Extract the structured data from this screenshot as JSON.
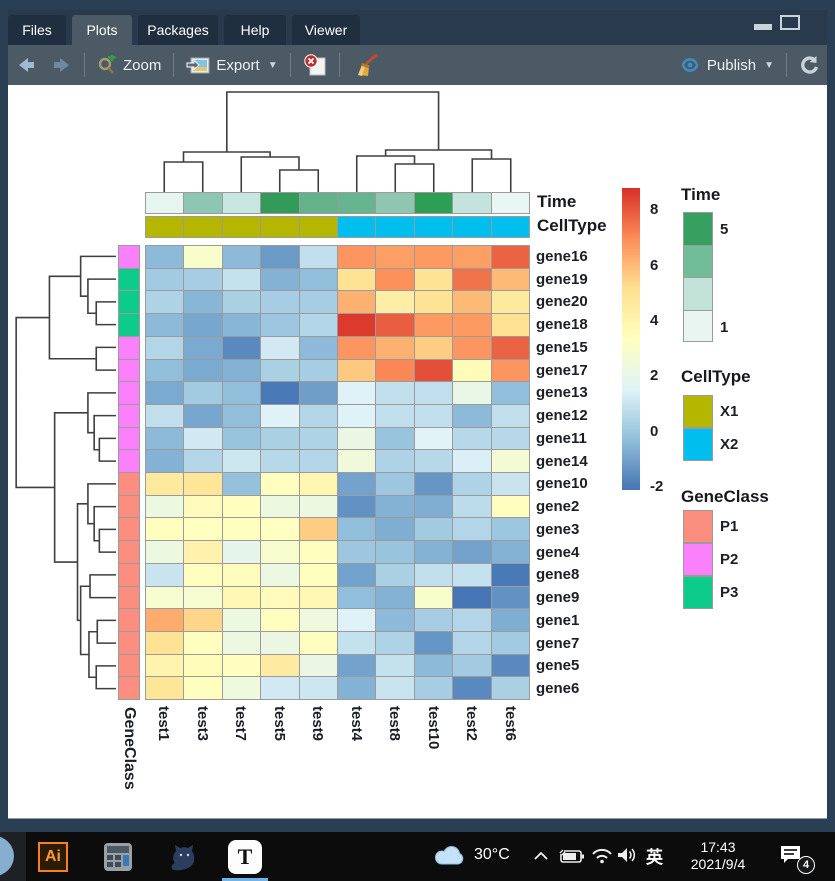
{
  "window": {
    "tabs": {
      "items": [
        "Files",
        "Plots",
        "Packages",
        "Help",
        "Viewer"
      ],
      "active": "Plots"
    },
    "toolbar": {
      "zoom_label": "Zoom",
      "export_label": "Export",
      "publish_label": "Publish"
    }
  },
  "chart_data": {
    "type": "heatmap",
    "columns": [
      "test1",
      "test3",
      "test7",
      "test5",
      "test9",
      "test4",
      "test8",
      "test10",
      "test2",
      "test6"
    ],
    "rows": [
      "gene16",
      "gene19",
      "gene20",
      "gene18",
      "gene15",
      "gene17",
      "gene13",
      "gene12",
      "gene11",
      "gene14",
      "gene10",
      "gene2",
      "gene3",
      "gene4",
      "gene8",
      "gene9",
      "gene1",
      "gene7",
      "gene5",
      "gene6"
    ],
    "values": [
      [
        -0.4,
        3.0,
        -0.4,
        -1.2,
        0.8,
        6.8,
        6.6,
        6.7,
        6.6,
        7.8
      ],
      [
        0.1,
        0.2,
        0.9,
        -0.6,
        -0.3,
        5.0,
        6.9,
        5.0,
        7.5,
        6.0
      ],
      [
        0.4,
        -0.5,
        0.3,
        0.2,
        0.2,
        6.2,
        4.4,
        5.0,
        6.0,
        4.6
      ],
      [
        -0.4,
        -0.9,
        -0.5,
        0.0,
        0.5,
        8.6,
        7.9,
        6.7,
        6.7,
        5.1
      ],
      [
        0.5,
        -0.8,
        -1.6,
        1.2,
        -0.4,
        6.8,
        6.2,
        5.6,
        6.8,
        7.8
      ],
      [
        -0.3,
        -0.8,
        -0.6,
        0.3,
        0.2,
        5.7,
        7.1,
        8.2,
        3.6,
        6.8
      ],
      [
        -0.8,
        0.1,
        -0.3,
        -2.0,
        -1.1,
        1.5,
        0.8,
        0.8,
        2.1,
        -0.3
      ],
      [
        0.8,
        -0.9,
        -0.3,
        1.5,
        0.5,
        1.5,
        0.8,
        0.8,
        -0.4,
        0.8
      ],
      [
        -0.4,
        1.2,
        -0.1,
        0.3,
        0.4,
        2.2,
        -0.1,
        1.6,
        0.6,
        0.6
      ],
      [
        -0.6,
        0.5,
        1.1,
        0.6,
        0.5,
        2.5,
        0.4,
        0.6,
        1.4,
        2.7
      ],
      [
        4.6,
        4.8,
        -0.2,
        3.4,
        3.9,
        -1.0,
        0.0,
        -1.3,
        0.4,
        1.0
      ],
      [
        2.3,
        3.5,
        3.4,
        2.3,
        2.3,
        -1.4,
        -0.6,
        -0.7,
        0.7,
        3.4
      ],
      [
        3.4,
        3.3,
        3.4,
        3.3,
        5.6,
        -0.3,
        -0.7,
        0.1,
        0.5,
        0.0
      ],
      [
        2.3,
        4.1,
        1.9,
        2.9,
        3.4,
        0.0,
        -0.1,
        -0.6,
        -1.0,
        -0.6
      ],
      [
        1.0,
        3.4,
        3.5,
        2.3,
        3.4,
        -1.0,
        0.3,
        0.8,
        0.9,
        -2.0
      ],
      [
        2.8,
        2.8,
        3.8,
        3.5,
        3.8,
        -0.3,
        -0.6,
        3.0,
        -2.1,
        -1.4
      ],
      [
        6.3,
        5.4,
        2.3,
        3.4,
        2.4,
        1.5,
        -0.4,
        0.2,
        0.5,
        -0.7
      ],
      [
        5.0,
        3.4,
        2.3,
        2.2,
        3.4,
        0.9,
        0.4,
        -1.3,
        0.5,
        0.1
      ],
      [
        4.0,
        3.6,
        3.4,
        4.5,
        2.2,
        -1.0,
        0.9,
        -0.4,
        0.1,
        -1.6
      ],
      [
        4.8,
        3.4,
        2.4,
        1.2,
        1.1,
        -0.6,
        1.0,
        0.2,
        -1.6,
        0.3
      ]
    ],
    "scale": {
      "min": -2.1,
      "max": 8.8,
      "ticks": [
        8,
        6,
        4,
        2,
        0,
        -2
      ],
      "palette": [
        "#4575b4",
        "#91bfdb",
        "#e0f3f8",
        "#ffffbf",
        "#fee090",
        "#fc8d59",
        "#d73027"
      ]
    },
    "col_annotations": {
      "Time": {
        "label": "Time",
        "colors": [
          "#e7f5f1",
          "#8ec6b4",
          "#c8e6e0",
          "#339b59",
          "#63b28b",
          "#66b490",
          "#8ec6b2",
          "#2f9e55",
          "#c3e3dc",
          "#e9f6f4"
        ]
      },
      "CellType": {
        "label": "CellType",
        "values": [
          "X1",
          "X1",
          "X1",
          "X1",
          "X1",
          "X2",
          "X2",
          "X2",
          "X2",
          "X2"
        ]
      }
    },
    "row_annotation": {
      "label": "GeneClass",
      "values": [
        "P2",
        "P3",
        "P3",
        "P3",
        "P2",
        "P2",
        "P2",
        "P2",
        "P2",
        "P2",
        "P1",
        "P1",
        "P1",
        "P1",
        "P1",
        "P1",
        "P1",
        "P1",
        "P1",
        "P1"
      ]
    },
    "annotation_colors": {
      "CellType": {
        "X1": "#b5b600",
        "X2": "#00bfee"
      },
      "GeneClass": {
        "P1": "#fb8e7e",
        "P2": "#fb80fb",
        "P3": "#0ccb8b"
      },
      "TimeLegend": [
        {
          "label": "5",
          "color": "#35a05f"
        },
        {
          "label": "",
          "color": "#72bd99"
        },
        {
          "label": "",
          "color": "#c2e2d8"
        },
        {
          "label": "1",
          "color": "#e9f5f1"
        }
      ]
    },
    "legend_titles": {
      "time": "Time",
      "celltype": "CellType",
      "geneclass": "GeneClass"
    },
    "dendrograms": {
      "col": {
        "merges": [
          [
            0,
            1,
            0.3
          ],
          [
            3,
            4,
            0.22
          ],
          [
            2,
            "n1",
            0.35
          ],
          [
            "n0",
            "n2",
            0.4
          ],
          [
            6,
            7,
            0.28
          ],
          [
            5,
            "n4",
            0.36
          ],
          [
            8,
            9,
            0.33
          ],
          [
            "n5",
            "n6",
            0.42
          ],
          [
            "n3",
            "n7",
            1.0
          ]
        ]
      },
      "row": {
        "merges": [
          [
            2,
            3,
            0.19
          ],
          [
            1,
            "n0",
            0.27
          ],
          [
            0,
            "n1",
            0.34
          ],
          [
            4,
            5,
            0.19
          ],
          [
            "n2",
            "n3",
            0.64
          ],
          [
            8,
            9,
            0.16
          ],
          [
            7,
            "n5",
            0.21
          ],
          [
            6,
            "n6",
            0.27
          ],
          [
            12,
            13,
            0.16
          ],
          [
            11,
            "n8",
            0.21
          ],
          [
            10,
            "n9",
            0.27
          ],
          [
            14,
            15,
            0.25
          ],
          [
            16,
            17,
            0.18
          ],
          [
            18,
            19,
            0.19
          ],
          [
            "n12",
            "n13",
            0.26
          ],
          [
            "n11",
            "n14",
            0.34
          ],
          [
            "n10",
            "n15",
            0.37
          ],
          [
            "n7",
            "n16",
            0.59
          ],
          [
            "n4",
            "n17",
            0.96
          ]
        ]
      }
    }
  },
  "taskbar": {
    "apps": [
      {
        "name": "illustrator",
        "label": "Ai"
      },
      {
        "name": "calculator",
        "label": ""
      },
      {
        "name": "cat-app",
        "label": ""
      },
      {
        "name": "typora",
        "label": "T",
        "active": true
      }
    ],
    "tray": {
      "temperature": "30°C",
      "ime": "英",
      "time": "17:43",
      "date": "2021/9/4",
      "badge_count": "4"
    }
  }
}
